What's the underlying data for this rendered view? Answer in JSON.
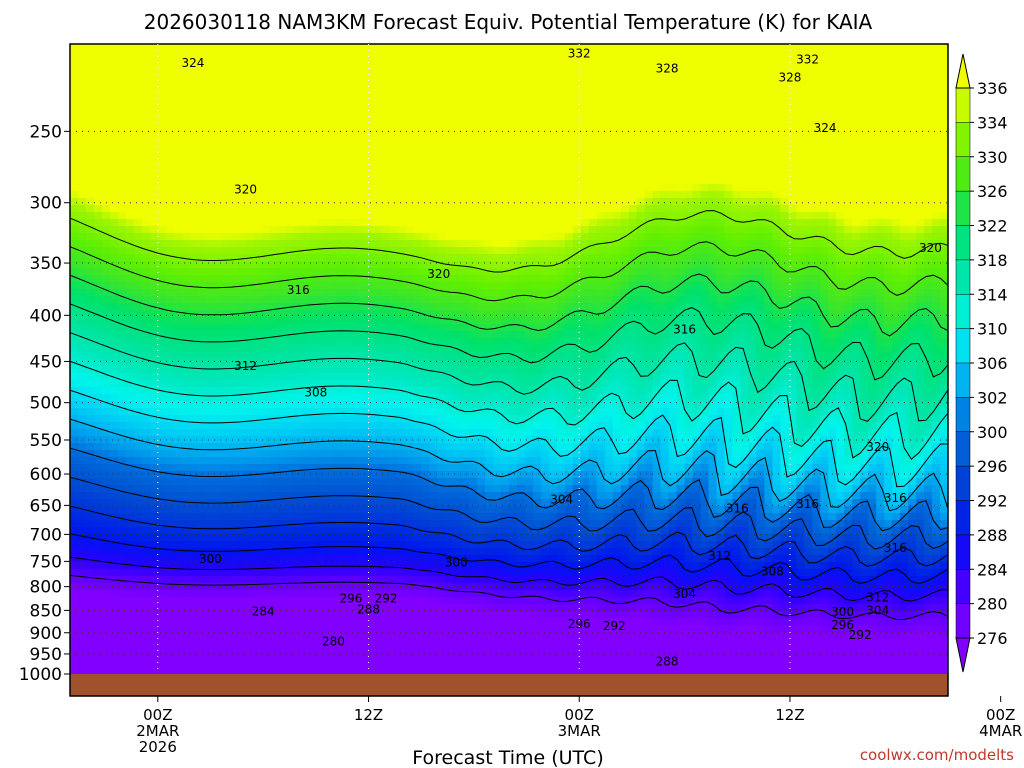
{
  "title": "2026030118 NAM3KM Forecast Equiv. Potential Temperature (K) for KAIA",
  "credit": "coolwx.com/modelts",
  "chart_data": {
    "type": "heatmap",
    "xlabel": "Forecast Time (UTC)",
    "ylabel": "",
    "y_scale": "log",
    "y_inverted": true,
    "ylim": [
      1000,
      200
    ],
    "xlim_hours": [
      -5,
      45
    ],
    "grid": "dotted",
    "x_ticks": [
      {
        "hour": 0,
        "lines": [
          "00Z",
          "2MAR",
          "2026"
        ]
      },
      {
        "hour": 12,
        "lines": [
          "12Z"
        ]
      },
      {
        "hour": 24,
        "lines": [
          "00Z",
          "3MAR"
        ]
      },
      {
        "hour": 36,
        "lines": [
          "12Z"
        ]
      },
      {
        "hour": 48,
        "lines": [
          "00Z",
          "4MAR"
        ]
      }
    ],
    "y_ticks": [
      250,
      300,
      350,
      400,
      450,
      500,
      550,
      600,
      650,
      700,
      750,
      800,
      850,
      900,
      950,
      1000
    ],
    "colorbar": {
      "labels": [
        336,
        334,
        330,
        326,
        322,
        318,
        314,
        310,
        306,
        302,
        300,
        296,
        292,
        288,
        284,
        280,
        276
      ],
      "range": [
        276,
        336
      ]
    },
    "contour_levels": [
      280,
      284,
      288,
      292,
      296,
      300,
      304,
      308,
      312,
      316,
      320,
      324,
      328,
      332
    ],
    "contour_labels": [
      {
        "text": "332",
        "hour": 24,
        "p": 205
      },
      {
        "text": "332",
        "hour": 37,
        "p": 208
      },
      {
        "text": "324",
        "hour": 2,
        "p": 210
      },
      {
        "text": "328",
        "hour": 29,
        "p": 213
      },
      {
        "text": "328",
        "hour": 36,
        "p": 218
      },
      {
        "text": "324",
        "hour": 38,
        "p": 248
      },
      {
        "text": "320",
        "hour": 5,
        "p": 290
      },
      {
        "text": "320",
        "hour": 44,
        "p": 337
      },
      {
        "text": "320",
        "hour": 16,
        "p": 360
      },
      {
        "text": "316",
        "hour": 8,
        "p": 375
      },
      {
        "text": "316",
        "hour": 30,
        "p": 415
      },
      {
        "text": "312",
        "hour": 5,
        "p": 455
      },
      {
        "text": "308",
        "hour": 9,
        "p": 487
      },
      {
        "text": "320",
        "hour": 41,
        "p": 560
      },
      {
        "text": "304",
        "hour": 23,
        "p": 640
      },
      {
        "text": "316",
        "hour": 33,
        "p": 655
      },
      {
        "text": "316",
        "hour": 37,
        "p": 648
      },
      {
        "text": "316",
        "hour": 42,
        "p": 638
      },
      {
        "text": "316",
        "hour": 42,
        "p": 725
      },
      {
        "text": "312",
        "hour": 32,
        "p": 740
      },
      {
        "text": "300",
        "hour": 3,
        "p": 745
      },
      {
        "text": "300",
        "hour": 17,
        "p": 752
      },
      {
        "text": "308",
        "hour": 35,
        "p": 770
      },
      {
        "text": "304",
        "hour": 30,
        "p": 815
      },
      {
        "text": "296",
        "hour": 11,
        "p": 825
      },
      {
        "text": "292",
        "hour": 13,
        "p": 825
      },
      {
        "text": "312",
        "hour": 41,
        "p": 822
      },
      {
        "text": "288",
        "hour": 12,
        "p": 848
      },
      {
        "text": "284",
        "hour": 6,
        "p": 852
      },
      {
        "text": "300",
        "hour": 39,
        "p": 853
      },
      {
        "text": "304",
        "hour": 41,
        "p": 850
      },
      {
        "text": "296",
        "hour": 24,
        "p": 880
      },
      {
        "text": "292",
        "hour": 26,
        "p": 885
      },
      {
        "text": "296",
        "hour": 39,
        "p": 882
      },
      {
        "text": "292",
        "hour": 40,
        "p": 905
      },
      {
        "text": "280",
        "hour": 10,
        "p": 920
      },
      {
        "text": "288",
        "hour": 29,
        "p": 968
      }
    ]
  }
}
